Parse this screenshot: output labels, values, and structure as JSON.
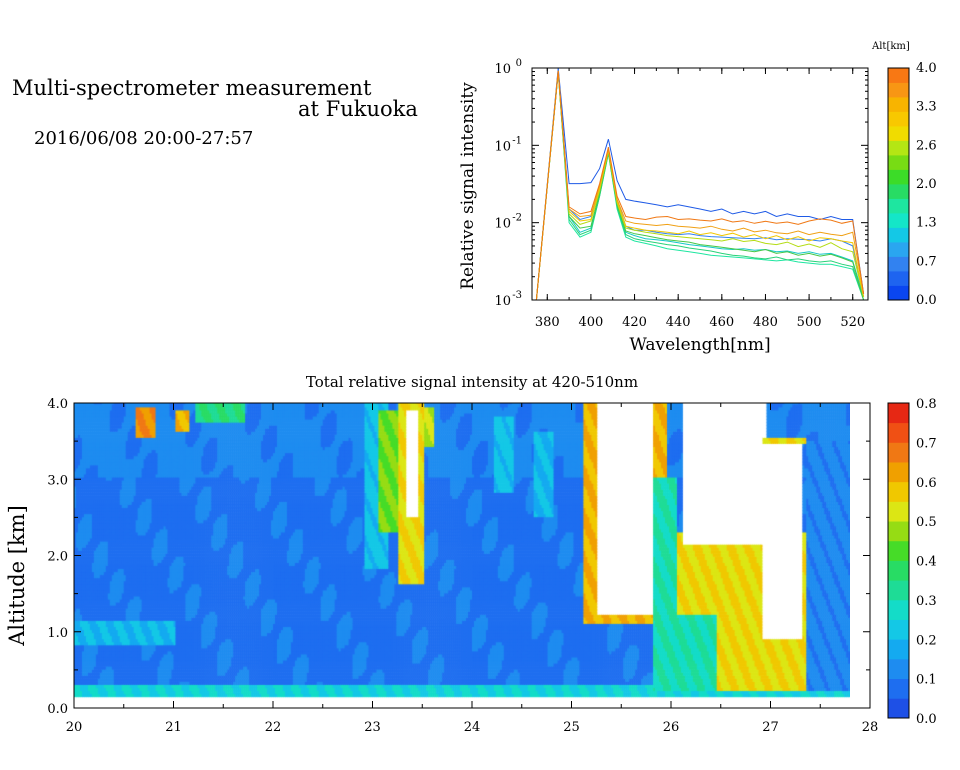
{
  "header": {
    "title_line1": "Multi-spectrometer measurement",
    "title_line2": "at Fukuoka",
    "datetime": "2016/06/08 20:00-27:57"
  },
  "chart_data": [
    {
      "type": "line",
      "name": "spectra",
      "xlabel": "Wavelength[nm]",
      "ylabel": "Relative signal intensity",
      "xlim": [
        373,
        527
      ],
      "ylim": [
        0.001,
        1
      ],
      "yscale": "log",
      "x_ticks": [
        380,
        400,
        420,
        440,
        460,
        480,
        500,
        520
      ],
      "y_ticks": [
        {
          "value": 0.001,
          "mant": "10",
          "exp": "-3"
        },
        {
          "value": 0.01,
          "mant": "10",
          "exp": "-2"
        },
        {
          "value": 0.1,
          "mant": "10",
          "exp": "-1"
        },
        {
          "value": 1,
          "mant": "10",
          "exp": "0"
        }
      ],
      "x": [
        375,
        385,
        390,
        395,
        400,
        404,
        408,
        412,
        416,
        420,
        425,
        430,
        435,
        440,
        445,
        450,
        455,
        460,
        465,
        470,
        475,
        480,
        485,
        490,
        495,
        500,
        505,
        510,
        515,
        520,
        525
      ],
      "series": [
        {
          "alt": 0.0,
          "color": "#1e5ae6",
          "values": [
            0.001,
            1.0,
            0.032,
            0.032,
            0.033,
            0.05,
            0.12,
            0.035,
            0.02,
            0.019,
            0.018,
            0.017,
            0.016,
            0.017,
            0.016,
            0.015,
            0.014,
            0.015,
            0.013,
            0.014,
            0.013,
            0.014,
            0.012,
            0.013,
            0.012,
            0.012,
            0.011,
            0.012,
            0.011,
            0.011,
            0.0012
          ]
        },
        {
          "alt": 0.3,
          "color": "#3282f0",
          "values": [
            0.001,
            0.95,
            0.015,
            0.011,
            0.012,
            0.03,
            0.09,
            0.02,
            0.009,
            0.008,
            0.008,
            0.0075,
            0.0072,
            0.007,
            0.0072,
            0.0068,
            0.0066,
            0.0065,
            0.0064,
            0.0063,
            0.0062,
            0.0064,
            0.006,
            0.0062,
            0.0061,
            0.006,
            0.0058,
            0.0062,
            0.0058,
            0.005,
            0.0011
          ]
        },
        {
          "alt": 1.0,
          "color": "#14c8c8",
          "values": [
            0.001,
            0.9,
            0.012,
            0.0075,
            0.0085,
            0.025,
            0.085,
            0.017,
            0.0075,
            0.0068,
            0.0062,
            0.006,
            0.0058,
            0.0055,
            0.0052,
            0.005,
            0.0048,
            0.0046,
            0.0045,
            0.0046,
            0.0044,
            0.0045,
            0.0042,
            0.0043,
            0.004,
            0.0042,
            0.0039,
            0.004,
            0.0036,
            0.0032,
            0.0011
          ]
        },
        {
          "alt": 1.5,
          "color": "#1ee6a0",
          "values": [
            0.001,
            0.9,
            0.01,
            0.0065,
            0.0075,
            0.022,
            0.08,
            0.015,
            0.0065,
            0.0058,
            0.0054,
            0.005,
            0.0046,
            0.0044,
            0.0042,
            0.004,
            0.0038,
            0.0037,
            0.0036,
            0.0035,
            0.0034,
            0.0033,
            0.0032,
            0.0033,
            0.0031,
            0.003,
            0.0029,
            0.0029,
            0.0027,
            0.0025,
            0.001
          ]
        },
        {
          "alt": 1.8,
          "color": "#28d278",
          "values": [
            0.001,
            0.88,
            0.011,
            0.007,
            0.008,
            0.022,
            0.078,
            0.016,
            0.007,
            0.0062,
            0.0058,
            0.0055,
            0.0052,
            0.005,
            0.0047,
            0.0045,
            0.0043,
            0.004,
            0.0038,
            0.0037,
            0.0035,
            0.0034,
            0.0036,
            0.0033,
            0.0034,
            0.0032,
            0.0031,
            0.0032,
            0.0029,
            0.0027,
            0.001
          ]
        },
        {
          "alt": 2.2,
          "color": "#46c846",
          "values": [
            0.001,
            0.88,
            0.012,
            0.0085,
            0.009,
            0.024,
            0.082,
            0.017,
            0.0078,
            0.0072,
            0.0068,
            0.0064,
            0.006,
            0.0058,
            0.0056,
            0.0052,
            0.005,
            0.0048,
            0.0046,
            0.0044,
            0.0042,
            0.0045,
            0.004,
            0.0042,
            0.0038,
            0.004,
            0.0037,
            0.0039,
            0.0035,
            0.0031,
            0.001
          ]
        },
        {
          "alt": 2.6,
          "color": "#b4dc14",
          "values": [
            0.001,
            0.9,
            0.013,
            0.0095,
            0.0105,
            0.026,
            0.085,
            0.018,
            0.0085,
            0.008,
            0.0075,
            0.0072,
            0.0068,
            0.0066,
            0.0064,
            0.0062,
            0.006,
            0.0058,
            0.0062,
            0.0057,
            0.0059,
            0.0054,
            0.0052,
            0.0056,
            0.0049,
            0.0053,
            0.0048,
            0.0055,
            0.0046,
            0.0042,
            0.0011
          ]
        },
        {
          "alt": 3.0,
          "color": "#f0c800",
          "values": [
            0.001,
            0.9,
            0.014,
            0.0105,
            0.011,
            0.028,
            0.088,
            0.019,
            0.009,
            0.0085,
            0.008,
            0.0078,
            0.0075,
            0.0072,
            0.0078,
            0.007,
            0.0074,
            0.0068,
            0.0073,
            0.0065,
            0.007,
            0.0062,
            0.0068,
            0.006,
            0.0066,
            0.0058,
            0.0064,
            0.0062,
            0.0058,
            0.0055,
            0.0011
          ]
        },
        {
          "alt": 3.5,
          "color": "#f0a014",
          "values": [
            0.001,
            0.92,
            0.015,
            0.012,
            0.0125,
            0.03,
            0.09,
            0.02,
            0.0105,
            0.0098,
            0.0095,
            0.0092,
            0.0095,
            0.009,
            0.0088,
            0.0085,
            0.009,
            0.0082,
            0.0078,
            0.0085,
            0.0076,
            0.008,
            0.0074,
            0.0072,
            0.0078,
            0.007,
            0.0075,
            0.0071,
            0.0068,
            0.0075,
            0.0012
          ]
        },
        {
          "alt": 3.9,
          "color": "#f07814",
          "values": [
            0.001,
            0.92,
            0.016,
            0.013,
            0.014,
            0.032,
            0.095,
            0.022,
            0.012,
            0.0115,
            0.011,
            0.0118,
            0.012,
            0.011,
            0.0112,
            0.0108,
            0.0105,
            0.0112,
            0.0102,
            0.0106,
            0.0098,
            0.0104,
            0.0098,
            0.0102,
            0.0095,
            0.0105,
            0.0112,
            0.0108,
            0.0098,
            0.0105,
            0.0012
          ]
        }
      ]
    },
    {
      "type": "colorbar",
      "name": "alt-colorbar",
      "title": "Alt[km]",
      "tick_labels": [
        "4.0",
        "3.3",
        "2.6",
        "2.0",
        "1.3",
        "0.7",
        "0.0"
      ],
      "colors_bottom_to_top": [
        "#0a46f0",
        "#1e64f0",
        "#3282f0",
        "#2aa6f0",
        "#14c8e6",
        "#14e6c8",
        "#1ee6a0",
        "#28dc64",
        "#3cdc28",
        "#78dc14",
        "#b4e614",
        "#f0dc00",
        "#f8c800",
        "#f8b400",
        "#f89614",
        "#f87814"
      ]
    },
    {
      "type": "heatmap",
      "name": "time-altitude",
      "title": "Total relative signal intensity at 420-510nm",
      "xlabel": "",
      "ylabel": "Altitude [km]",
      "xlim": [
        20,
        28
      ],
      "ylim": [
        0.0,
        4.0
      ],
      "zlim": [
        0.0,
        0.8
      ],
      "x_ticks": [
        20,
        21,
        22,
        23,
        24,
        25,
        26,
        27,
        28
      ],
      "y_ticks": [
        "0.0",
        "1.0",
        "2.0",
        "3.0",
        "4.0"
      ],
      "data_end_hour": 27.8,
      "background_value": 0.09,
      "blank_above_max": true,
      "features": [
        {
          "t0": 20.0,
          "t1": 21.0,
          "z0": 0.8,
          "z1": 1.15,
          "value": 0.2
        },
        {
          "t0": 20.0,
          "t1": 27.8,
          "z0": 0.15,
          "z1": 0.3,
          "value": 0.25
        },
        {
          "t0": 20.6,
          "t1": 20.8,
          "z0": 3.55,
          "z1": 3.95,
          "value": 0.65
        },
        {
          "t0": 21.0,
          "t1": 21.15,
          "z0": 3.6,
          "z1": 3.9,
          "value": 0.6
        },
        {
          "t0": 21.2,
          "t1": 21.7,
          "z0": 3.75,
          "z1": 4.0,
          "value": 0.35
        },
        {
          "t0": 22.9,
          "t1": 23.15,
          "z0": 1.8,
          "z1": 4.0,
          "value": 0.22
        },
        {
          "t0": 23.05,
          "t1": 23.3,
          "z0": 2.3,
          "z1": 3.9,
          "value": 0.45
        },
        {
          "t0": 23.25,
          "t1": 23.5,
          "z0": 1.6,
          "z1": 4.0,
          "value": 0.55
        },
        {
          "t0": 23.32,
          "t1": 23.45,
          "z0": 2.5,
          "z1": 3.9,
          "value": 0.95
        },
        {
          "t0": 23.5,
          "t1": 23.6,
          "z0": 3.4,
          "z1": 3.95,
          "value": 0.5
        },
        {
          "t0": 24.2,
          "t1": 24.4,
          "z0": 2.8,
          "z1": 3.8,
          "value": 0.22
        },
        {
          "t0": 24.6,
          "t1": 24.8,
          "z0": 2.5,
          "z1": 3.6,
          "value": 0.2
        },
        {
          "t0": 25.1,
          "t1": 25.95,
          "z0": 1.1,
          "z1": 4.0,
          "value": 0.6
        },
        {
          "t0": 25.25,
          "t1": 25.8,
          "z0": 1.2,
          "z1": 4.0,
          "value": 0.95
        },
        {
          "t0": 25.8,
          "t1": 26.05,
          "z0": 0.2,
          "z1": 3.0,
          "value": 0.3
        },
        {
          "t0": 26.05,
          "t1": 27.35,
          "z0": 0.2,
          "z1": 2.3,
          "value": 0.55
        },
        {
          "t0": 26.05,
          "t1": 26.45,
          "z0": 0.2,
          "z1": 1.2,
          "value": 0.3
        },
        {
          "t0": 26.1,
          "t1": 26.95,
          "z0": 2.15,
          "z1": 4.0,
          "value": 0.95
        },
        {
          "t0": 26.9,
          "t1": 27.3,
          "z0": 0.9,
          "z1": 3.5,
          "value": 0.95
        },
        {
          "t0": 26.9,
          "t1": 27.35,
          "z0": 3.45,
          "z1": 3.55,
          "value": 0.55
        },
        {
          "t0": 27.35,
          "t1": 27.8,
          "z0": 0.2,
          "z1": 3.5,
          "value": 0.12
        }
      ]
    },
    {
      "type": "colorbar",
      "name": "intensity-colorbar",
      "tick_labels": [
        "0.8",
        "0.7",
        "0.6",
        "0.5",
        "0.4",
        "0.3",
        "0.2",
        "0.1",
        "0.0"
      ],
      "colors_bottom_to_top": [
        "#1e50e6",
        "#1e6ef0",
        "#1e8cf0",
        "#14aaf0",
        "#14c8e6",
        "#14dcc8",
        "#1edc96",
        "#28dc64",
        "#46dc28",
        "#96dc14",
        "#dce614",
        "#f0c800",
        "#f0a000",
        "#f07814",
        "#f05014",
        "#e62814"
      ]
    }
  ]
}
